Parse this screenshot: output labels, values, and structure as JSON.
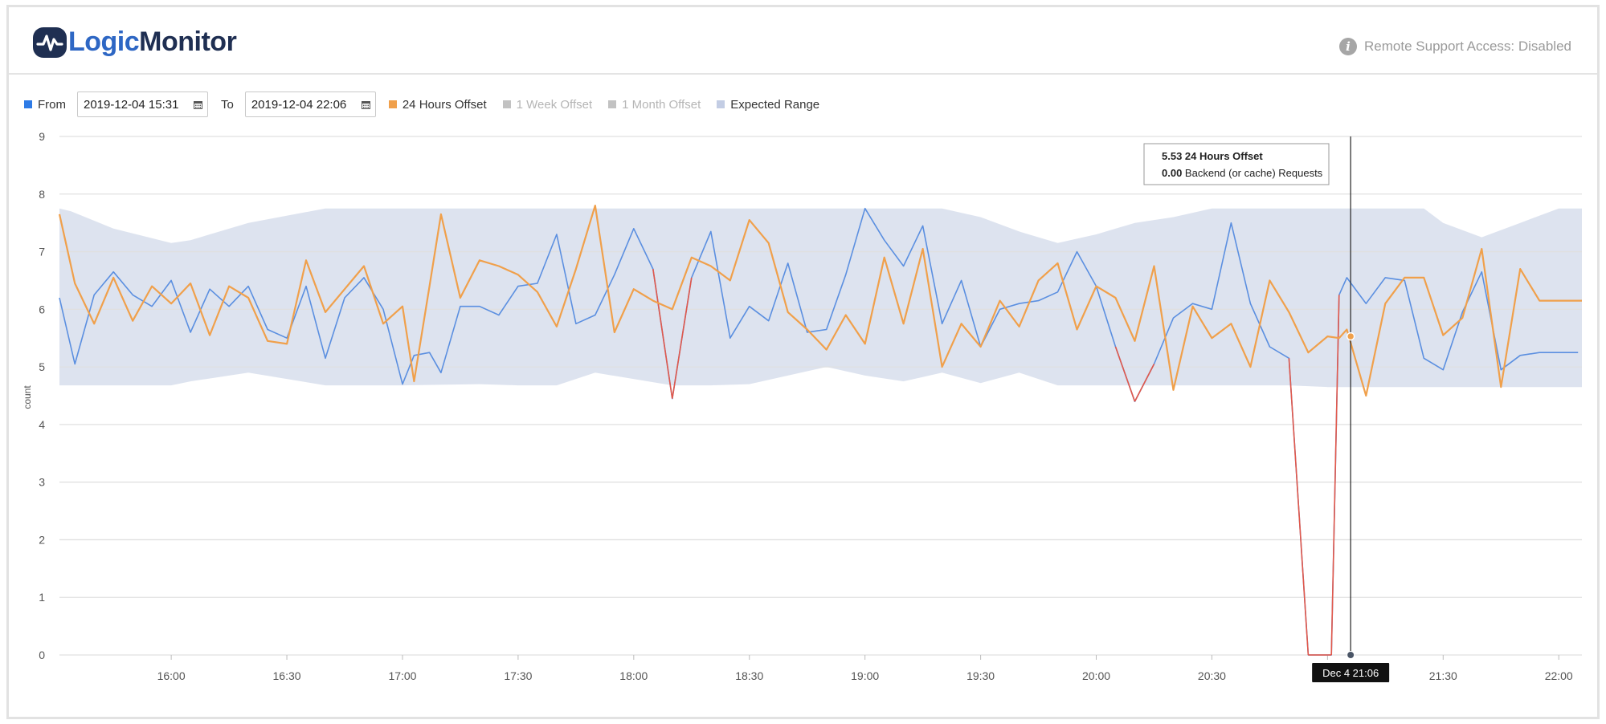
{
  "app": {
    "brand_part1": "Logic",
    "brand_part2": "Monitor",
    "support_text": "Remote Support Access: Disabled",
    "accent_color": "#2e67c4",
    "brand_dark": "#1f2f52"
  },
  "controls": {
    "from_label": "From",
    "from_value": "2019-12-04 15:31",
    "to_label": "To",
    "to_value": "2019-12-04 22:06",
    "legend": [
      {
        "label": "24 Hours Offset",
        "color": "#f0a04b",
        "enabled": true
      },
      {
        "label": "1 Week Offset",
        "color": "#c2c2c2",
        "enabled": false
      },
      {
        "label": "1 Month Offset",
        "color": "#c2c2c2",
        "enabled": false
      },
      {
        "label": "Expected Range",
        "color": "#c3cde4",
        "enabled": true
      }
    ]
  },
  "chart_data": {
    "type": "line",
    "ylabel": "count",
    "ylim": [
      0,
      9
    ],
    "yticks": [
      "0",
      "1",
      "2",
      "3",
      "4",
      "5",
      "6",
      "7",
      "8",
      "9"
    ],
    "xtick_labels": [
      "16:00",
      "16:30",
      "17:00",
      "17:30",
      "18:00",
      "18:30",
      "19:00",
      "19:30",
      "20:00",
      "20:30",
      "21:00",
      "21:30",
      "22:00"
    ],
    "xtick_values": [
      240,
      270,
      300,
      330,
      360,
      390,
      420,
      450,
      480,
      510,
      540,
      570,
      600
    ],
    "xlim": [
      211,
      606
    ],
    "x_unit": "minutes since midnight, 2019-12-04",
    "grid": true,
    "expected_range": {
      "color": "#dbe1ee",
      "x": [
        211,
        214,
        225,
        240,
        245,
        260,
        280,
        300,
        320,
        330,
        340,
        350,
        370,
        380,
        390,
        400,
        410,
        420,
        430,
        440,
        450,
        460,
        470,
        480,
        490,
        500,
        510,
        520,
        530,
        540,
        550,
        560,
        565,
        570,
        580,
        590,
        600,
        606
      ],
      "upper": [
        7.75,
        7.7,
        7.4,
        7.15,
        7.2,
        7.5,
        7.75,
        7.75,
        7.75,
        7.75,
        7.75,
        7.75,
        7.75,
        7.75,
        7.75,
        7.75,
        7.75,
        7.75,
        7.75,
        7.75,
        7.6,
        7.35,
        7.15,
        7.3,
        7.5,
        7.6,
        7.75,
        7.75,
        7.75,
        7.75,
        7.75,
        7.75,
        7.75,
        7.5,
        7.25,
        7.5,
        7.75,
        7.75
      ],
      "lower": [
        4.68,
        4.68,
        4.68,
        4.68,
        4.75,
        4.9,
        4.68,
        4.68,
        4.7,
        4.68,
        4.68,
        4.9,
        4.68,
        4.68,
        4.7,
        4.85,
        5.0,
        4.85,
        4.75,
        4.9,
        4.72,
        4.9,
        4.68,
        4.68,
        4.68,
        4.68,
        4.68,
        4.68,
        4.68,
        4.65,
        4.65,
        4.65,
        4.65,
        4.65,
        4.65,
        4.65,
        4.65,
        4.65
      ]
    },
    "series": [
      {
        "name": "24 Hours Offset",
        "color": "#f0a04b",
        "x": [
          211,
          215,
          220,
          225,
          230,
          235,
          240,
          245,
          250,
          255,
          260,
          265,
          270,
          275,
          280,
          285,
          290,
          295,
          300,
          303,
          307,
          310,
          315,
          320,
          325,
          330,
          335,
          340,
          345,
          350,
          355,
          360,
          365,
          370,
          375,
          380,
          385,
          390,
          395,
          400,
          405,
          410,
          415,
          420,
          425,
          430,
          435,
          440,
          445,
          450,
          455,
          460,
          465,
          470,
          475,
          480,
          485,
          490,
          495,
          500,
          505,
          510,
          515,
          520,
          525,
          530,
          535,
          540,
          543,
          545,
          550,
          555,
          560,
          565,
          570,
          575,
          580,
          585,
          590,
          595,
          600,
          605,
          606
        ],
        "y": [
          7.65,
          6.45,
          5.75,
          6.55,
          5.8,
          6.4,
          6.1,
          6.45,
          5.55,
          6.4,
          6.2,
          5.45,
          5.4,
          6.85,
          5.95,
          6.35,
          6.75,
          5.75,
          6.05,
          4.75,
          6.4,
          7.65,
          6.2,
          6.85,
          6.75,
          6.6,
          6.3,
          5.7,
          6.7,
          7.8,
          5.6,
          6.35,
          6.15,
          6.0,
          6.9,
          6.75,
          6.5,
          7.55,
          7.15,
          5.95,
          5.65,
          5.3,
          5.9,
          5.4,
          6.9,
          5.75,
          7.05,
          5.0,
          5.75,
          5.35,
          6.15,
          5.7,
          6.5,
          6.8,
          5.65,
          6.4,
          6.2,
          5.45,
          6.75,
          4.6,
          6.05,
          5.5,
          5.75,
          5.0,
          6.5,
          5.95,
          5.25,
          5.53,
          5.5,
          5.65,
          4.5,
          6.1,
          6.55,
          6.55,
          5.55,
          5.85,
          7.05,
          4.65,
          6.7,
          6.15,
          6.15,
          6.15,
          6.15
        ]
      },
      {
        "name": "Backend (or cache) Requests",
        "color": "#5b8fe0",
        "anomaly_color": "#e2584a",
        "x": [
          211,
          215,
          220,
          225,
          230,
          235,
          240,
          245,
          250,
          255,
          260,
          265,
          270,
          275,
          280,
          285,
          290,
          295,
          300,
          303,
          307,
          310,
          315,
          320,
          325,
          330,
          335,
          340,
          345,
          350,
          355,
          360,
          365,
          370,
          375,
          380,
          385,
          390,
          395,
          400,
          405,
          410,
          415,
          420,
          425,
          430,
          435,
          440,
          445,
          450,
          455,
          460,
          465,
          470,
          475,
          480,
          485,
          490,
          495,
          500,
          505,
          510,
          515,
          520,
          525,
          530,
          535,
          537,
          540,
          541,
          543,
          545,
          550,
          555,
          560,
          565,
          570,
          575,
          580,
          585,
          590,
          595,
          600,
          605
        ],
        "y": [
          6.2,
          5.05,
          6.25,
          6.65,
          6.25,
          6.05,
          6.5,
          5.6,
          6.35,
          6.05,
          6.4,
          5.65,
          5.5,
          6.4,
          5.15,
          6.2,
          6.55,
          6.0,
          4.7,
          5.2,
          5.25,
          4.9,
          6.05,
          6.05,
          5.9,
          6.4,
          6.45,
          7.3,
          5.75,
          5.9,
          6.6,
          7.4,
          6.7,
          4.45,
          6.55,
          7.35,
          5.5,
          6.05,
          5.8,
          6.8,
          5.6,
          5.65,
          6.6,
          7.75,
          7.2,
          6.75,
          7.45,
          5.75,
          6.5,
          5.35,
          6.0,
          6.1,
          6.15,
          6.3,
          7.0,
          6.4,
          5.35,
          4.4,
          5.05,
          5.85,
          6.1,
          6.0,
          7.5,
          6.1,
          5.35,
          5.15,
          0.0,
          0.0,
          0.0,
          0.0,
          6.25,
          6.55,
          6.1,
          6.55,
          6.5,
          5.15,
          4.95,
          5.95,
          6.65,
          4.95,
          5.2,
          5.25,
          5.25,
          5.25
        ]
      }
    ],
    "tooltip": {
      "x": 546,
      "time_label": "Dec 4 21:06",
      "rows": [
        {
          "value": "5.53",
          "label": "24 Hours Offset"
        },
        {
          "value": "0.00",
          "label": "Backend (or cache) Requests"
        }
      ]
    }
  }
}
